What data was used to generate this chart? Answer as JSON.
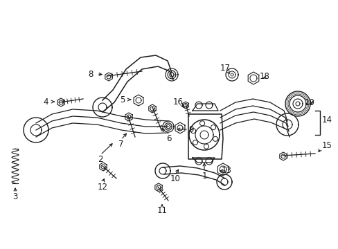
{
  "bg_color": "#ffffff",
  "fig_width": 4.89,
  "fig_height": 3.6,
  "dpi": 100,
  "line_color": "#1a1a1a",
  "label_color": "#000000",
  "label_fontsize": 8.5
}
